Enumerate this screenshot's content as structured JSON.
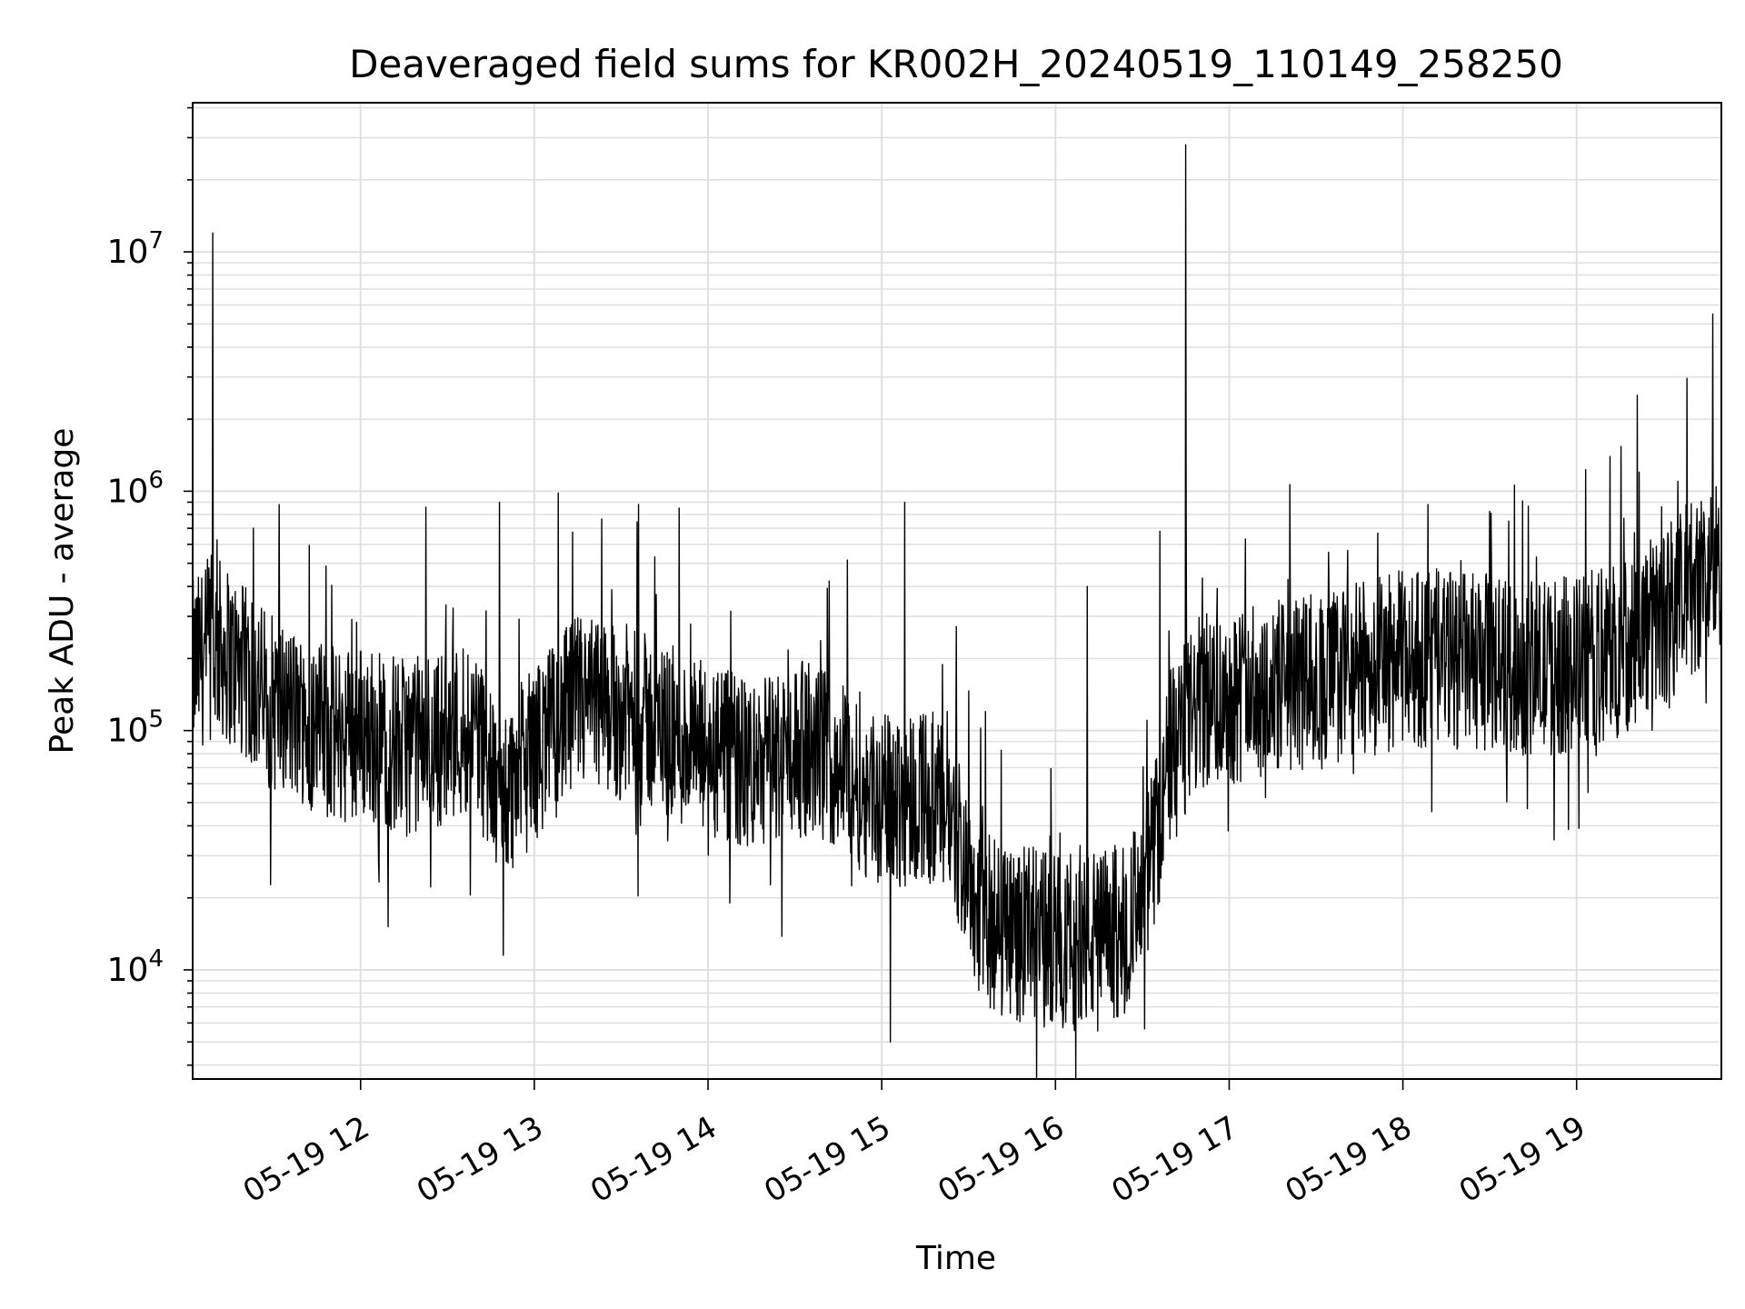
{
  "chart_data": {
    "type": "line",
    "title": "Deaveraged field sums for KR002H_20240519_110149_258250",
    "xlabel": "Time",
    "ylabel": "Peak ADU - average",
    "yscale": "log",
    "ylim": [
      3500,
      42000000
    ],
    "xlim": [
      "05-19 11:02",
      "05-19 19:50"
    ],
    "grid": true,
    "line_color": "#000000",
    "grid_color": "#e0e0e0",
    "x_tick_labels": [
      "05-19 12",
      "05-19 13",
      "05-19 14",
      "05-19 15",
      "05-19 16",
      "05-19 17",
      "05-19 18",
      "05-19 19"
    ],
    "x_tick_times": [
      "05-19 12:00",
      "05-19 13:00",
      "05-19 14:00",
      "05-19 15:00",
      "05-19 16:00",
      "05-19 17:00",
      "05-19 18:00",
      "05-19 19:00"
    ],
    "y_ticks": [
      {
        "value": 10000,
        "base": "10",
        "exp": "4"
      },
      {
        "value": 100000,
        "base": "10",
        "exp": "5"
      },
      {
        "value": 1000000,
        "base": "10",
        "exp": "6"
      },
      {
        "value": 10000000,
        "base": "10",
        "exp": "7"
      }
    ],
    "series": [
      {
        "x": [
          "05-19 11:02",
          "05-19 11:05",
          "05-19 11:08",
          "05-19 11:12",
          "05-19 11:20",
          "05-19 11:30",
          "05-19 11:40",
          "05-19 11:50",
          "05-19 12:00",
          "05-19 12:15",
          "05-19 12:30",
          "05-19 12:40",
          "05-19 12:45",
          "05-19 12:50",
          "05-19 13:00",
          "05-19 13:15",
          "05-19 13:30",
          "05-19 13:45",
          "05-19 14:00",
          "05-19 14:15",
          "05-19 14:30",
          "05-19 14:45",
          "05-19 15:00",
          "05-19 15:15",
          "05-19 15:25",
          "05-19 15:35",
          "05-19 15:50",
          "05-19 16:05",
          "05-19 16:20",
          "05-19 16:30",
          "05-19 16:40",
          "05-19 16:50",
          "05-19 17:00",
          "05-19 17:15",
          "05-19 17:30",
          "05-19 17:45",
          "05-19 18:00",
          "05-19 18:15",
          "05-19 18:30",
          "05-19 18:45",
          "05-19 19:00",
          "05-19 19:15",
          "05-19 19:30",
          "05-19 19:45",
          "05-19 19:50"
        ],
        "values": [
          180000,
          200000,
          230000,
          220000,
          170000,
          130000,
          110000,
          95000,
          100000,
          85000,
          95000,
          110000,
          60000,
          55000,
          80000,
          130000,
          120000,
          100000,
          80000,
          70000,
          85000,
          75000,
          50000,
          55000,
          40000,
          16000,
          14000,
          13000,
          14000,
          18000,
          80000,
          130000,
          140000,
          150000,
          160000,
          180000,
          200000,
          200000,
          190000,
          180000,
          190000,
          220000,
          300000,
          450000,
          500000
        ]
      }
    ],
    "spikes": [
      {
        "x": "05-19 11:09",
        "value": 12000000
      },
      {
        "x": "05-19 16:45",
        "value": 28000000
      },
      {
        "x": "05-19 19:47",
        "value": 5500000
      },
      {
        "x": "05-19 12:48",
        "value": 900000
      },
      {
        "x": "05-19 13:36",
        "value": 880000
      },
      {
        "x": "05-19 13:50",
        "value": 850000
      },
      {
        "x": "05-19 15:08",
        "value": 900000
      },
      {
        "x": "05-19 16:11",
        "value": 400000
      },
      {
        "x": "05-19 16:36",
        "value": 680000
      },
      {
        "x": "05-19 19:35",
        "value": 1100000
      },
      {
        "x": "05-19 15:03",
        "value": 5000
      }
    ]
  }
}
